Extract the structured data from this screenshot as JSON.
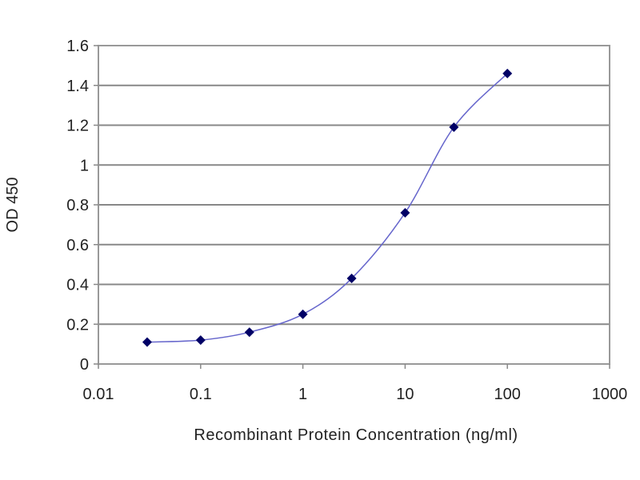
{
  "chart_data": {
    "type": "line",
    "title": "",
    "xlabel": "Recombinant Protein Concentration (ng/ml)",
    "ylabel": "OD 450",
    "x_scale": "log",
    "xlim": [
      0.01,
      1000
    ],
    "ylim": [
      0,
      1.6
    ],
    "x_ticks": [
      "0.01",
      "0.1",
      "1",
      "10",
      "100",
      "1000"
    ],
    "y_ticks": [
      "0",
      "0.2",
      "0.4",
      "0.6",
      "0.8",
      "1",
      "1.2",
      "1.4",
      "1.6"
    ],
    "grid": "horizontal",
    "series": [
      {
        "x": [
          0.03,
          0.1,
          0.3,
          1,
          3,
          10,
          30,
          100
        ],
        "y": [
          0.11,
          0.12,
          0.16,
          0.25,
          0.43,
          0.76,
          1.19,
          1.46
        ],
        "color": "#6666cc",
        "marker_color": "#000066",
        "marker": "diamond",
        "smooth": true
      }
    ]
  }
}
